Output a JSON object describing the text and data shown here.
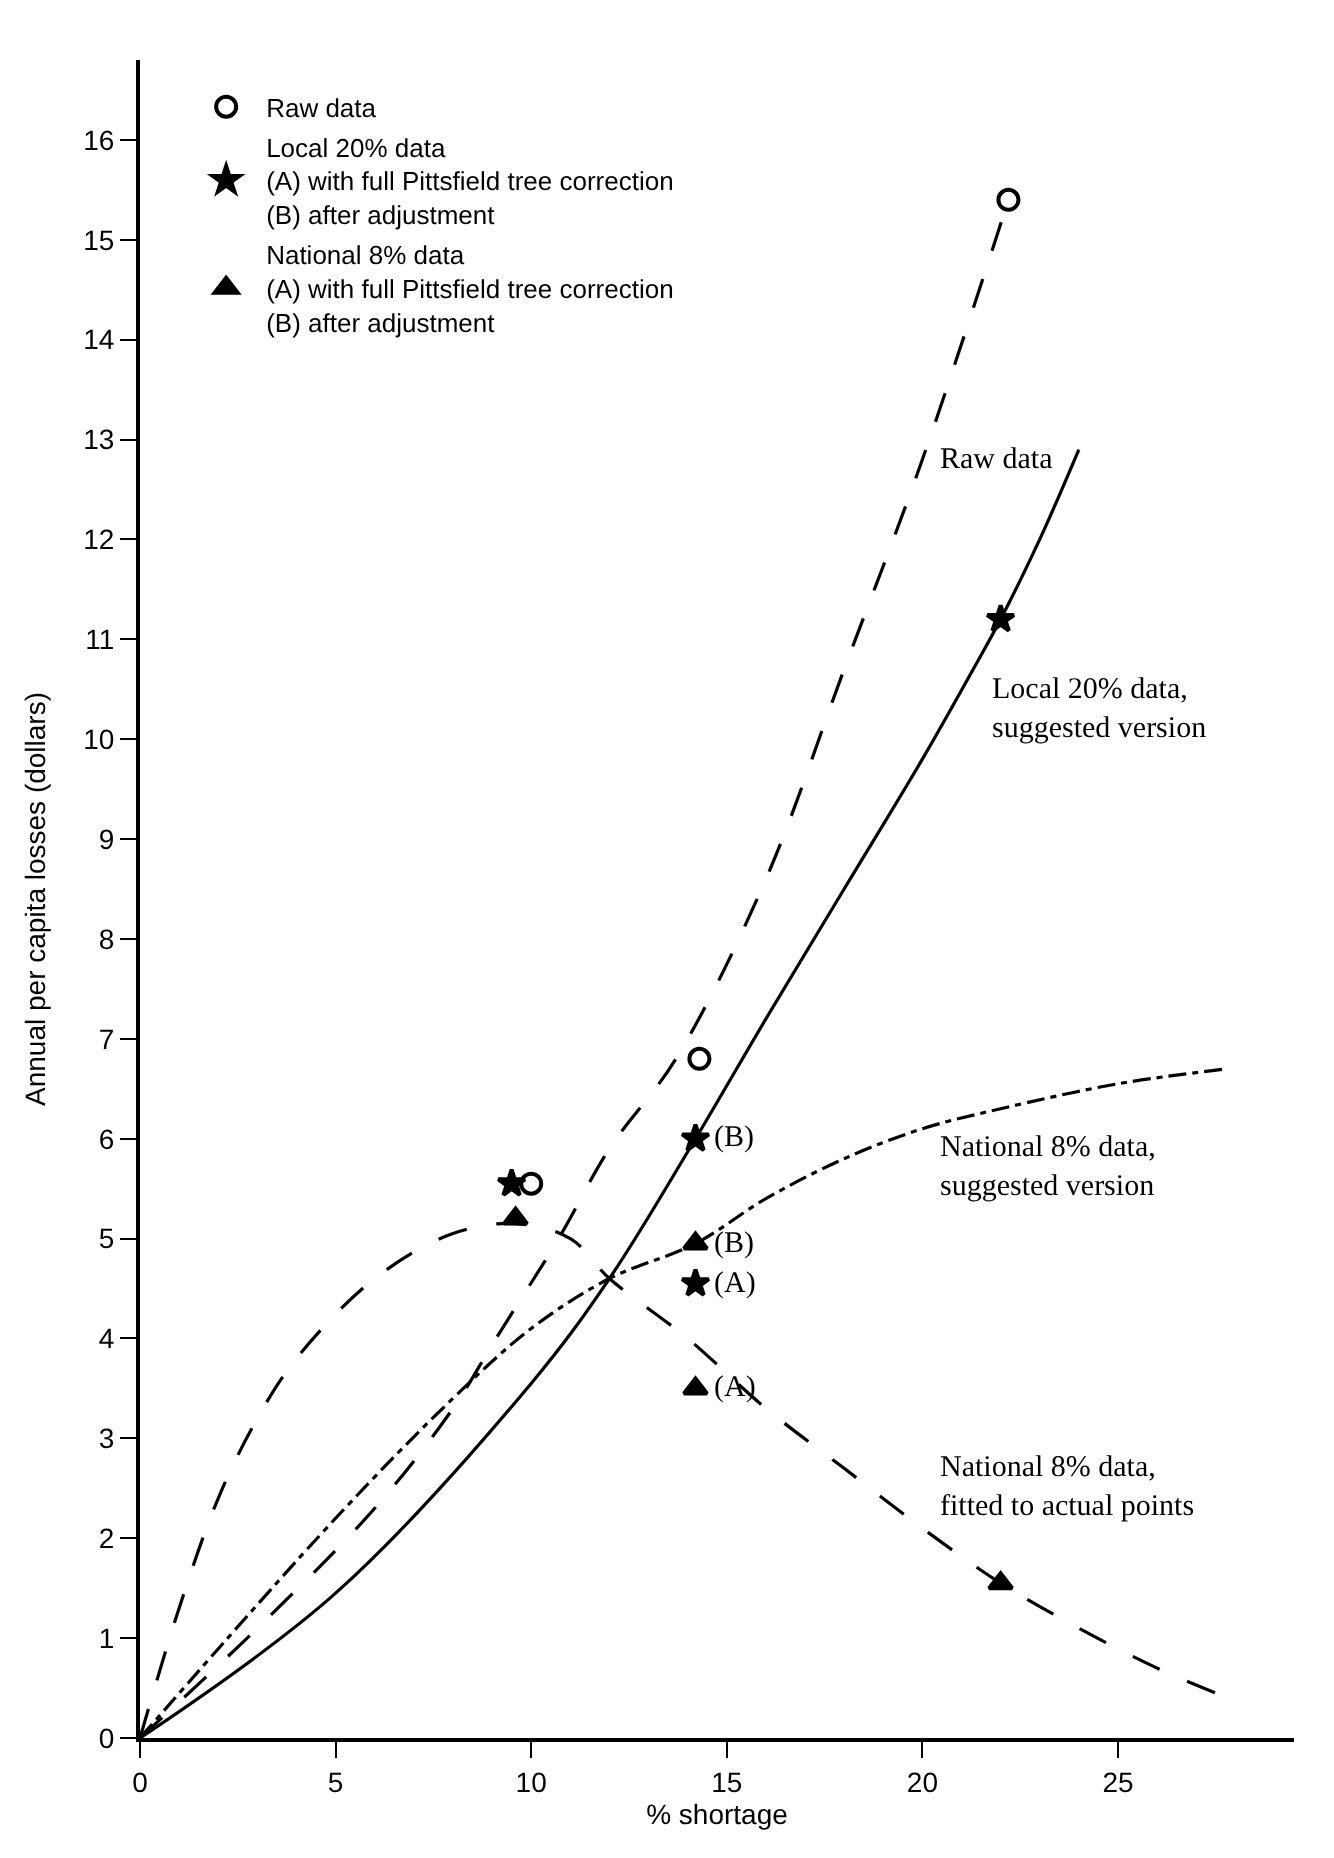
{
  "chart_data": {
    "type": "line",
    "xlabel": "% shortage",
    "ylabel": "Annual per capita losses (dollars)",
    "xlim": [
      0,
      29.5
    ],
    "ylim": [
      0,
      16.8
    ],
    "xticks": [
      0,
      5,
      10,
      15,
      20,
      25
    ],
    "yticks": [
      0,
      1,
      2,
      3,
      4,
      5,
      6,
      7,
      8,
      9,
      10,
      11,
      12,
      13,
      14,
      15,
      16
    ],
    "legend": "top left",
    "series": [
      {
        "line_style": "dashed",
        "marker": "none",
        "color": "#000000",
        "x": [
          0,
          3,
          6,
          8,
          9.1,
          10.7,
          12,
          13.7,
          16,
          18,
          20,
          22.2
        ],
        "values": [
          0,
          1.1,
          2.3,
          3.3,
          4.0,
          5.0,
          5.9,
          6.8,
          8.6,
          10.7,
          12.8,
          15.4
        ]
      },
      {
        "line_style": "solid",
        "marker": "none",
        "color": "#000000",
        "x": [
          0,
          5,
          10,
          12,
          14.2,
          16,
          18,
          20,
          21.3,
          22,
          23,
          24
        ],
        "values": [
          0,
          1.45,
          3.55,
          4.6,
          6.0,
          7.2,
          8.5,
          9.8,
          10.7,
          11.2,
          12.0,
          12.9
        ]
      },
      {
        "line_style": "dashdot",
        "marker": "none",
        "color": "#000000",
        "x": [
          0,
          5,
          8,
          10,
          12,
          14.2,
          16,
          18,
          20,
          22,
          25,
          27.8
        ],
        "values": [
          0,
          2.2,
          3.4,
          4.1,
          4.6,
          4.95,
          5.4,
          5.8,
          6.1,
          6.3,
          6.55,
          6.7
        ]
      },
      {
        "line_style": "dashed",
        "marker": "none",
        "color": "#000000",
        "x": [
          0,
          1,
          2,
          3,
          4,
          6,
          8,
          9.6,
          11,
          12,
          14,
          16,
          18,
          20,
          22,
          24,
          26,
          27.5
        ],
        "values": [
          0,
          1.3,
          2.4,
          3.2,
          3.8,
          4.6,
          5.05,
          5.15,
          5.0,
          4.6,
          4.0,
          3.3,
          2.7,
          2.1,
          1.55,
          1.1,
          0.7,
          0.45
        ]
      },
      {
        "type": "scatter",
        "name": "Raw data",
        "marker": "circle",
        "color": "#000000",
        "x": [
          10,
          14.3,
          22.2
        ],
        "values": [
          5.55,
          6.8,
          15.4
        ]
      },
      {
        "type": "scatter",
        "name": "Local 20% data\n(A) with full Pittsfield tree correction\n(B) after adjustment",
        "marker": "star",
        "color": "#000000",
        "x": [
          9.5,
          14.2,
          14.2,
          22
        ],
        "values": [
          5.55,
          6.0,
          4.55,
          11.2
        ]
      },
      {
        "type": "scatter",
        "name": "National 8% data\n(A) with full Pittsfield tree correction\n(B) after adjustment",
        "marker": "triangle",
        "color": "#000000",
        "x": [
          9.6,
          14.2,
          14.2,
          22
        ],
        "values": [
          5.2,
          4.95,
          3.5,
          1.55
        ]
      }
    ],
    "annotations": [
      {
        "text": "Raw data",
        "x": 20,
        "y": 12.8
      },
      {
        "text": "Local 20% data,\nsuggested version",
        "x": 21.3,
        "y": 10.7
      },
      {
        "text": "National 8% data,\nsuggested version",
        "x": 20,
        "y": 6.1
      },
      {
        "text": "National 8% data,\nfitted to actual points",
        "x": 20,
        "y": 2.1
      },
      {
        "text": "(B)",
        "x": 14.2,
        "y": 6.0
      },
      {
        "text": "(A)",
        "x": 14.2,
        "y": 4.55
      },
      {
        "text": "(B)",
        "x": 14.2,
        "y": 4.95
      },
      {
        "text": "(A)",
        "x": 14.2,
        "y": 3.5
      }
    ]
  }
}
